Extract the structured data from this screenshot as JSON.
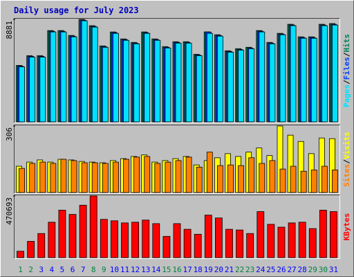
{
  "title": "Daily usage for July 2023",
  "separator": "/",
  "chart_data": [
    {
      "type": "bar",
      "ylim": [
        0,
        8881
      ],
      "yticks": [
        8881
      ],
      "series": [
        {
          "name": "Hits",
          "color": "#00805c",
          "values": [
            4895,
            5740,
            5740,
            7915,
            7915,
            7492,
            8881,
            8337,
            6586,
            7794,
            7190,
            6888,
            7794,
            7190,
            6525,
            6948,
            6948,
            5861,
            7800,
            7552,
            6163,
            6344,
            6465,
            7915,
            6888,
            7673,
            8458,
            7371,
            7371,
            8458,
            8519
          ]
        },
        {
          "name": "Files",
          "color": "#0040ff",
          "values": [
            4832,
            5677,
            5677,
            7852,
            7852,
            7429,
            8818,
            8274,
            6523,
            7731,
            7127,
            6825,
            7731,
            7127,
            6462,
            6885,
            6885,
            5798,
            7790,
            7489,
            6100,
            6281,
            6402,
            7852,
            6825,
            7610,
            8395,
            7308,
            7308,
            8395,
            8456
          ]
        },
        {
          "name": "Pages",
          "color": "#00e0ff",
          "values": [
            4772,
            5617,
            5617,
            7792,
            7792,
            7369,
            8758,
            8214,
            6463,
            7671,
            7067,
            6765,
            7671,
            7067,
            6402,
            6825,
            6825,
            5738,
            7671,
            7429,
            6040,
            6221,
            6342,
            7792,
            6765,
            7550,
            8335,
            7248,
            7248,
            8335,
            8396
          ]
        }
      ]
    },
    {
      "type": "bar",
      "ylim": [
        0,
        306
      ],
      "yticks": [
        306
      ],
      "series": [
        {
          "name": "Visits",
          "color": "#ffff00",
          "values": [
            121,
            140,
            150,
            140,
            153,
            150,
            143,
            140,
            137,
            147,
            156,
            166,
            173,
            140,
            147,
            156,
            166,
            127,
            147,
            160,
            179,
            166,
            186,
            205,
            170,
            306,
            264,
            235,
            179,
            251,
            248
          ]
        },
        {
          "name": "Sites",
          "color": "#ff8000",
          "values": [
            111,
            134,
            140,
            134,
            153,
            147,
            137,
            137,
            134,
            140,
            153,
            163,
            166,
            134,
            140,
            147,
            163,
            117,
            186,
            124,
            127,
            124,
            160,
            134,
            147,
            108,
            121,
            98,
            104,
            121,
            104
          ]
        }
      ]
    },
    {
      "type": "bar",
      "ylim": [
        0,
        470693
      ],
      "yticks": [
        470693
      ],
      "categories": [
        "1",
        "2",
        "3",
        "4",
        "5",
        "6",
        "7",
        "8",
        "9",
        "10",
        "11",
        "12",
        "13",
        "14",
        "15",
        "16",
        "17",
        "18",
        "19",
        "20",
        "21",
        "22",
        "23",
        "24",
        "25",
        "26",
        "27",
        "28",
        "29",
        "30",
        "31"
      ],
      "category_colors": [
        "#008040",
        "#008040",
        "#0000ff",
        "#0000ff",
        "#0000ff",
        "#0000ff",
        "#0000ff",
        "#008040",
        "#008040",
        "#0000ff",
        "#0000ff",
        "#0000ff",
        "#0000ff",
        "#0000ff",
        "#008040",
        "#008040",
        "#0000ff",
        "#0000ff",
        "#0000ff",
        "#0000ff",
        "#0000ff",
        "#008040",
        "#008040",
        "#0000ff",
        "#0000ff",
        "#0000ff",
        "#0000ff",
        "#0000ff",
        "#008040",
        "#008040",
        "#0000ff"
      ],
      "series": [
        {
          "name": "KBytes",
          "color": "#ff0000",
          "values": [
            48690,
            124430,
            183940,
            270500,
            362470,
            330010,
            400340,
            470693,
            292140,
            281320,
            265090,
            270500,
            286730,
            259680,
            162300,
            259680,
            216400,
            178530,
            324600,
            302960,
            216400,
            210990,
            183940,
            351650,
            254270,
            232630,
            265090,
            270500,
            221810,
            362470,
            351650
          ]
        }
      ]
    }
  ]
}
